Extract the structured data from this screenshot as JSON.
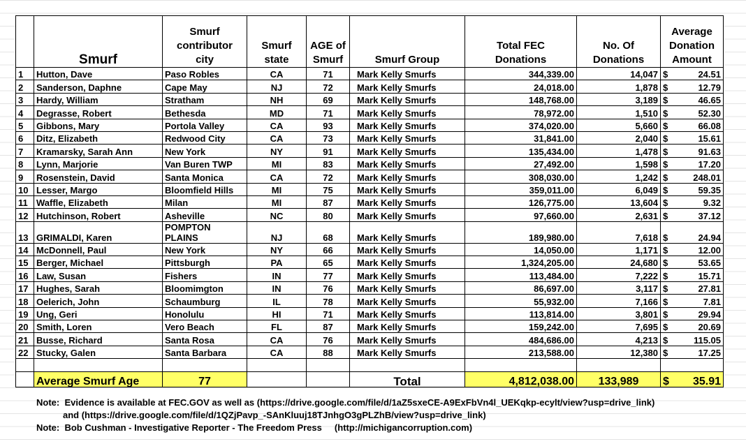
{
  "columns": [
    [
      "Smurf"
    ],
    [
      "Smurf",
      "contributor",
      "city"
    ],
    [
      "Smurf",
      "state"
    ],
    [
      "AGE of",
      "Smurf"
    ],
    [
      "Smurf Group"
    ],
    [
      "Total FEC",
      "Donations"
    ],
    [
      "No. Of",
      "Donations"
    ],
    [
      "Average",
      "Donation",
      "Amount"
    ]
  ],
  "rows": [
    [
      "1",
      "Hutton, Dave",
      "Paso Robles",
      "CA",
      "71",
      "Mark Kelly Smurfs",
      "344,339.00",
      "14,047",
      "$",
      "24.51"
    ],
    [
      "2",
      "Sanderson, Daphne",
      "Cape May",
      "NJ",
      "72",
      "Mark Kelly Smurfs",
      "24,018.00",
      "1,878",
      "$",
      "12.79"
    ],
    [
      "3",
      "Hardy, William",
      "Stratham",
      "NH",
      "69",
      "Mark Kelly Smurfs",
      "148,768.00",
      "3,189",
      "$",
      "46.65"
    ],
    [
      "4",
      "Degrasse, Robert",
      "Bethesda",
      "MD",
      "71",
      "Mark Kelly Smurfs",
      "78,972.00",
      "1,510",
      "$",
      "52.30"
    ],
    [
      "5",
      "Gibbons, Mary",
      "Portola Valley",
      "CA",
      "93",
      "Mark Kelly Smurfs",
      "374,020.00",
      "5,660",
      "$",
      "66.08"
    ],
    [
      "6",
      "Ditz, Elizabeth",
      "Redwood City",
      "CA",
      "73",
      "Mark Kelly Smurfs",
      "31,841.00",
      "2,040",
      "$",
      "15.61"
    ],
    [
      "7",
      "Kramarsky, Sarah Ann",
      "New York",
      "NY",
      "91",
      "Mark Kelly Smurfs",
      "135,434.00",
      "1,478",
      "$",
      "91.63"
    ],
    [
      "8",
      "Lynn, Marjorie",
      "Van Buren TWP",
      "MI",
      "83",
      "Mark Kelly Smurfs",
      "27,492.00",
      "1,598",
      "$",
      "17.20"
    ],
    [
      "9",
      "Rosenstein, David",
      "Santa Monica",
      "CA",
      "72",
      "Mark Kelly Smurfs",
      "308,030.00",
      "1,242",
      "$",
      "248.01"
    ],
    [
      "10",
      "Lesser, Margo",
      "Bloomfield Hills",
      "MI",
      "75",
      "Mark Kelly Smurfs",
      "359,011.00",
      "6,049",
      "$",
      "59.35"
    ],
    [
      "11",
      "Waffle, Elizabeth",
      "Milan",
      "MI",
      "87",
      "Mark Kelly Smurfs",
      "126,775.00",
      "13,604",
      "$",
      "9.32"
    ],
    [
      "12",
      "Hutchinson, Robert",
      "Asheville",
      "NC",
      "80",
      "Mark Kelly Smurfs",
      "97,660.00",
      "2,631",
      "$",
      "37.12"
    ],
    [
      "13",
      "GRIMALDI, Karen",
      [
        "POMPTON",
        "PLAINS"
      ],
      "NJ",
      "68",
      "Mark Kelly Smurfs",
      "189,980.00",
      "7,618",
      "$",
      "24.94"
    ],
    [
      "14",
      "McDonnell, Paul",
      "New York",
      "NY",
      "66",
      "Mark Kelly Smurfs",
      "14,050.00",
      "1,171",
      "$",
      "12.00"
    ],
    [
      "15",
      "Berger, Michael",
      "Pittsburgh",
      "PA",
      "65",
      "Mark Kelly Smurfs",
      "1,324,205.00",
      "24,680",
      "$",
      "53.65"
    ],
    [
      "16",
      "Law, Susan",
      "Fishers",
      "IN",
      "77",
      "Mark Kelly Smurfs",
      "113,484.00",
      "7,222",
      "$",
      "15.71"
    ],
    [
      "17",
      "Hughes, Sarah",
      "Bloomimgton",
      "IN",
      "76",
      "Mark Kelly Smurfs",
      "86,697.00",
      "3,117",
      "$",
      "27.81"
    ],
    [
      "18",
      "Oelerich, John",
      "Schaumburg",
      "IL",
      "78",
      "Mark Kelly Smurfs",
      "55,932.00",
      "7,166",
      "$",
      "7.81"
    ],
    [
      "19",
      "Ung, Geri",
      "Honolulu",
      "HI",
      "71",
      "Mark Kelly Smurfs",
      "113,814.00",
      "3,801",
      "$",
      "29.94"
    ],
    [
      "20",
      "Smith, Loren",
      "Vero Beach",
      "FL",
      "87",
      "Mark Kelly Smurfs",
      "159,242.00",
      "7,695",
      "$",
      "20.69"
    ],
    [
      "21",
      "Busse, Richard",
      "Santa Rosa",
      "CA",
      "76",
      "Mark Kelly Smurfs",
      "484,686.00",
      "4,213",
      "$",
      "115.05"
    ],
    [
      "22",
      "Stucky, Galen",
      "Santa Barbara",
      "CA",
      "88",
      "Mark Kelly Smurfs",
      "213,588.00",
      "12,380",
      "$",
      "17.25"
    ]
  ],
  "footer": {
    "age_label": "Average Smurf Age",
    "age": "77",
    "total_label": "Total",
    "total": "4,812,038.00",
    "count": "133,989",
    "currency": "$",
    "average": "35.91"
  },
  "notes": [
    "Note:  Evidence is available at FEC.GOV as well as (https://drive.google.com/file/d/1aZ5sxeCE-A9ExFbVn4l_UEKqkp-ecylt/view?usp=drive_link)",
    "and (https://drive.google.com/file/d/1QZjPavp_-SAnKluuj18TJnhgO3gPLZhB/view?usp=drive_link)",
    "Note:  Bob Cushman - Investigative Reporter - The Freedom Press     (http://michigancorruption.com)"
  ]
}
